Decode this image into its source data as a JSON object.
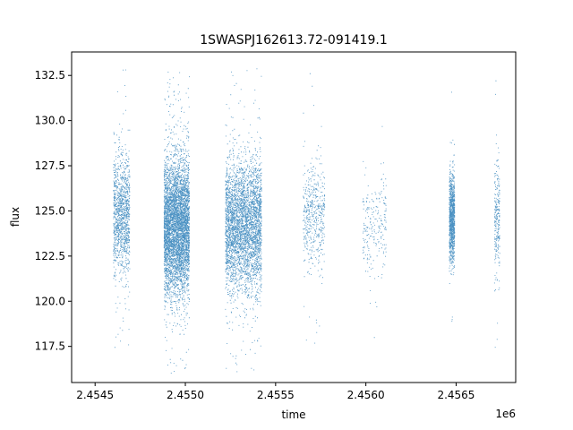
{
  "chart_data": {
    "type": "scatter",
    "title": "1SWASPJ162613.72-091419.1",
    "xlabel": "time",
    "ylabel": "flux",
    "x_offset_label": "1e6",
    "xlim": [
      2.45437,
      2.45683
    ],
    "ylim": [
      115.5,
      133.8
    ],
    "x_ticks": [
      2.4545,
      2.455,
      2.4555,
      2.456,
      2.4565
    ],
    "x_tick_labels": [
      "2.4545",
      "2.4550",
      "2.4555",
      "2.4560",
      "2.4565"
    ],
    "y_ticks": [
      117.5,
      120.0,
      122.5,
      125.0,
      127.5,
      130.0,
      132.5
    ],
    "y_tick_labels": [
      "117.5",
      "120.0",
      "122.5",
      "125.0",
      "127.5",
      "130.0",
      "132.5"
    ],
    "grid": false,
    "marker_color": "#1f77b4",
    "seasons": [
      {
        "x_start": 2.4546,
        "x_end": 2.45469,
        "center": 124.8,
        "spread": 1.6,
        "density": 1200,
        "outliers": 40,
        "ymin": 116.5,
        "ymax": 132.9
      },
      {
        "x_start": 2.45488,
        "x_end": 2.45502,
        "center": 124.2,
        "spread": 1.9,
        "density": 5000,
        "outliers": 140,
        "ymin": 116.0,
        "ymax": 132.8
      },
      {
        "x_start": 2.45522,
        "x_end": 2.45542,
        "center": 124.2,
        "spread": 1.8,
        "density": 3800,
        "outliers": 110,
        "ymin": 116.0,
        "ymax": 133.0
      },
      {
        "x_start": 2.45565,
        "x_end": 2.45577,
        "center": 124.8,
        "spread": 1.4,
        "density": 500,
        "outliers": 20,
        "ymin": 116.2,
        "ymax": 132.7
      },
      {
        "x_start": 2.45598,
        "x_end": 2.45611,
        "center": 124.2,
        "spread": 1.4,
        "density": 220,
        "outliers": 8,
        "ymin": 116.5,
        "ymax": 132.8
      },
      {
        "x_start": 2.45646,
        "x_end": 2.45649,
        "center": 124.6,
        "spread": 1.2,
        "density": 1100,
        "outliers": 15,
        "ymin": 117.0,
        "ymax": 132.3
      },
      {
        "x_start": 2.45671,
        "x_end": 2.45674,
        "center": 124.6,
        "spread": 1.5,
        "density": 250,
        "outliers": 12,
        "ymin": 116.2,
        "ymax": 132.9
      }
    ]
  }
}
